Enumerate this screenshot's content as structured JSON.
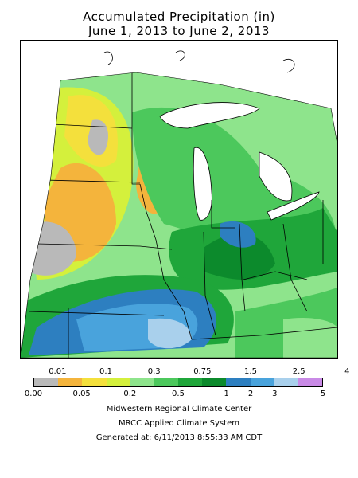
{
  "title_line1": "Accumulated Precipitation (in)",
  "title_line2": "June 1, 2013 to June 2, 2013",
  "legend": {
    "upper_labels": [
      "0.01",
      "0.1",
      "0.3",
      "0.75",
      "1.5",
      "2.5",
      "4"
    ],
    "lower_labels": [
      "0.00",
      "0.05",
      "0.2",
      "0.5",
      "1",
      "2",
      "3",
      "5"
    ],
    "colors": [
      "#b9b9b9",
      "#f4b43c",
      "#f4e03c",
      "#d4f03c",
      "#8ee48c",
      "#4cc85c",
      "#1fa63a",
      "#0c8a2c",
      "#2d7fc0",
      "#49a3dc",
      "#a9d0ec",
      "#c98ae6"
    ]
  },
  "credits": {
    "line1": "Midwestern Regional Climate Center",
    "line2": "MRCC Applied Climate System",
    "line3": "Generated at: 6/11/2013 8:55:33 AM CDT"
  }
}
